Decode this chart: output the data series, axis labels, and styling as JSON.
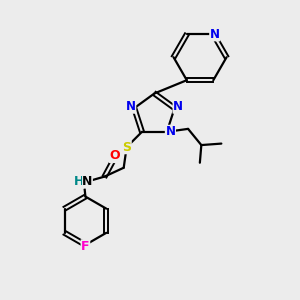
{
  "bg_color": "#ececec",
  "atom_colors": {
    "N": "#0000ee",
    "S": "#cccc00",
    "O": "#ff0000",
    "F": "#ff00cc",
    "H": "#008888",
    "C": "#000000"
  },
  "bond_color": "#000000",
  "font_size": 8.5,
  "fig_size": [
    3.0,
    3.0
  ],
  "dpi": 100
}
